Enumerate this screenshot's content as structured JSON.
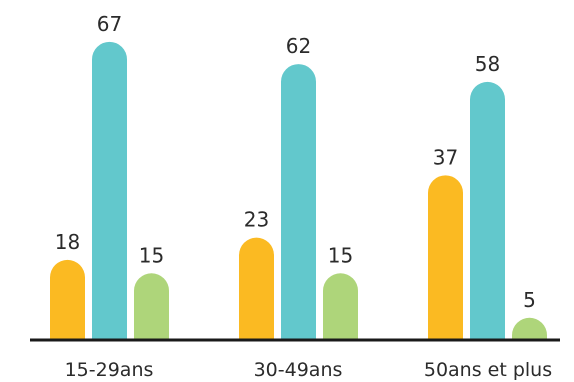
{
  "chart_data": {
    "type": "bar",
    "categories": [
      "15-29ans",
      "30-49ans",
      "50ans et plus"
    ],
    "series": [
      {
        "values": [
          18,
          23,
          37
        ],
        "color": "#FBBA22"
      },
      {
        "values": [
          67,
          62,
          58
        ],
        "color": "#62C8CC"
      },
      {
        "values": [
          15,
          15,
          5
        ],
        "color": "#AED57A"
      }
    ],
    "value_labels": [
      [
        "18",
        "23",
        "37"
      ],
      [
        "67",
        "62",
        "58"
      ],
      [
        "15",
        "15",
        "5"
      ]
    ],
    "ylim": [
      0,
      67
    ],
    "grid": false,
    "legend": "none",
    "baseline_color": "#1a1a1a"
  }
}
